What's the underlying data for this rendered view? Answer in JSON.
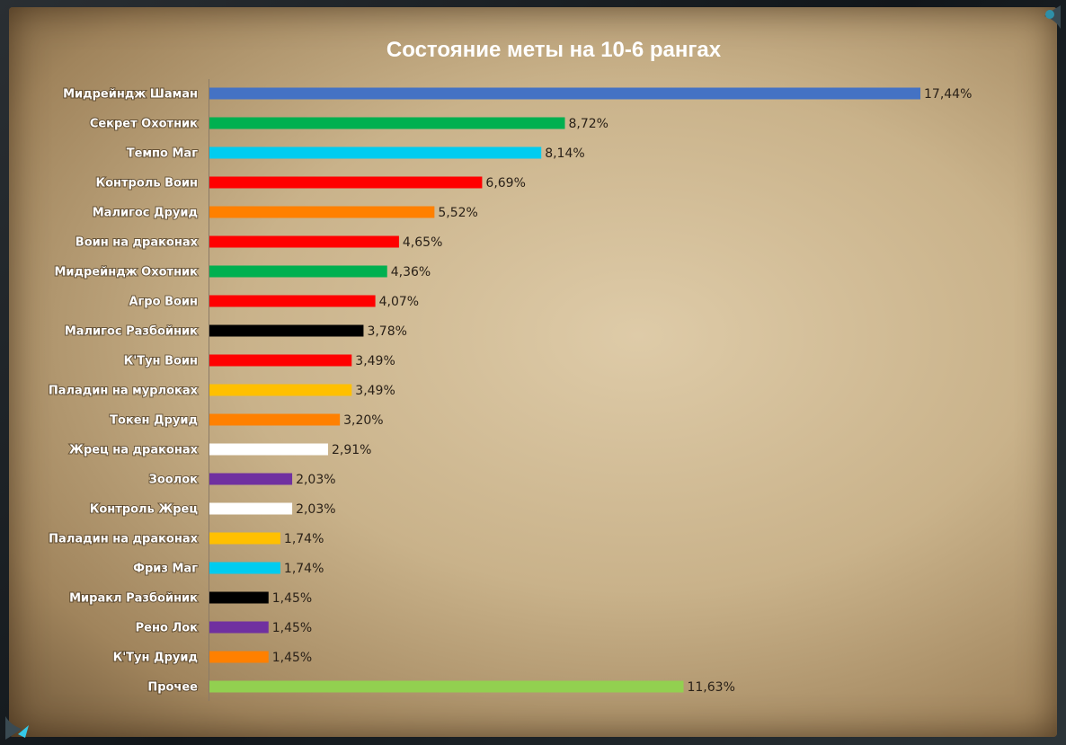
{
  "chart_data": {
    "type": "bar",
    "orientation": "horizontal",
    "title": "Состояние меты на 10-6 рангах",
    "xlim": [
      0,
      17.44
    ],
    "grid": false,
    "legend": "none",
    "value_suffix": "%",
    "categories": [
      "Мидрейндж Шаман",
      "Секрет Охотник",
      "Темпо Маг",
      "Контроль Воин",
      "Малигос Друид",
      "Воин на драконах",
      "Мидрейндж Охотник",
      "Агро Воин",
      "Малигос Разбойник",
      "К'Тун Воин",
      "Паладин на мурлоках",
      "Токен Друид",
      "Жрец на драконах",
      "Зоолок",
      "Контроль Жрец",
      "Паладин на драконах",
      "Фриз Маг",
      "Миракл Разбойник",
      "Рено Лок",
      "К'Тун Друид",
      "Прочее"
    ],
    "values": [
      17.44,
      8.72,
      8.14,
      6.69,
      5.52,
      4.65,
      4.36,
      4.07,
      3.78,
      3.49,
      3.49,
      3.2,
      2.91,
      2.03,
      2.03,
      1.74,
      1.74,
      1.45,
      1.45,
      1.45,
      11.63
    ],
    "value_labels": [
      "17,44%",
      "8,72%",
      "8,14%",
      "6,69%",
      "5,52%",
      "4,65%",
      "4,36%",
      "4,07%",
      "3,78%",
      "3,49%",
      "3,49%",
      "3,20%",
      "2,91%",
      "2,03%",
      "2,03%",
      "1,74%",
      "1,74%",
      "1,45%",
      "1,45%",
      "1,45%",
      "11,63%"
    ],
    "colors": [
      "#4472C4",
      "#00B050",
      "#00CCF0",
      "#FF0000",
      "#FF8000",
      "#FF0000",
      "#00B050",
      "#FF0000",
      "#000000",
      "#FF0000",
      "#FFC000",
      "#FF8000",
      "#FFFFFF",
      "#7030A0",
      "#FFFFFF",
      "#FFC000",
      "#00CCF0",
      "#000000",
      "#7030A0",
      "#FF8000",
      "#92D050"
    ]
  }
}
